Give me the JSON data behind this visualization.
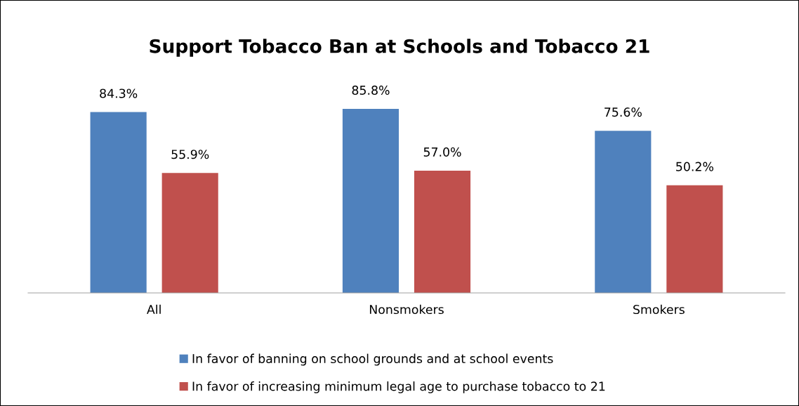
{
  "chart_data": {
    "type": "bar",
    "title": "Support Tobacco Ban at Schools and Tobacco 21",
    "categories": [
      "All",
      "Nonsmokers",
      "Smokers"
    ],
    "series": [
      {
        "name": "In favor of banning on school grounds and at school events",
        "color": "#4f81bd",
        "values": [
          84.3,
          85.8,
          75.6
        ],
        "value_labels": [
          "84.3%",
          "85.8%",
          "75.6%"
        ]
      },
      {
        "name": "In favor of increasing minimum legal age to purchase tobacco to 21",
        "color": "#c0504d",
        "values": [
          55.9,
          57.0,
          50.2
        ],
        "value_labels": [
          "55.9%",
          "57.0%",
          "50.2%"
        ]
      }
    ],
    "legend": "bottom",
    "grid": false
  }
}
